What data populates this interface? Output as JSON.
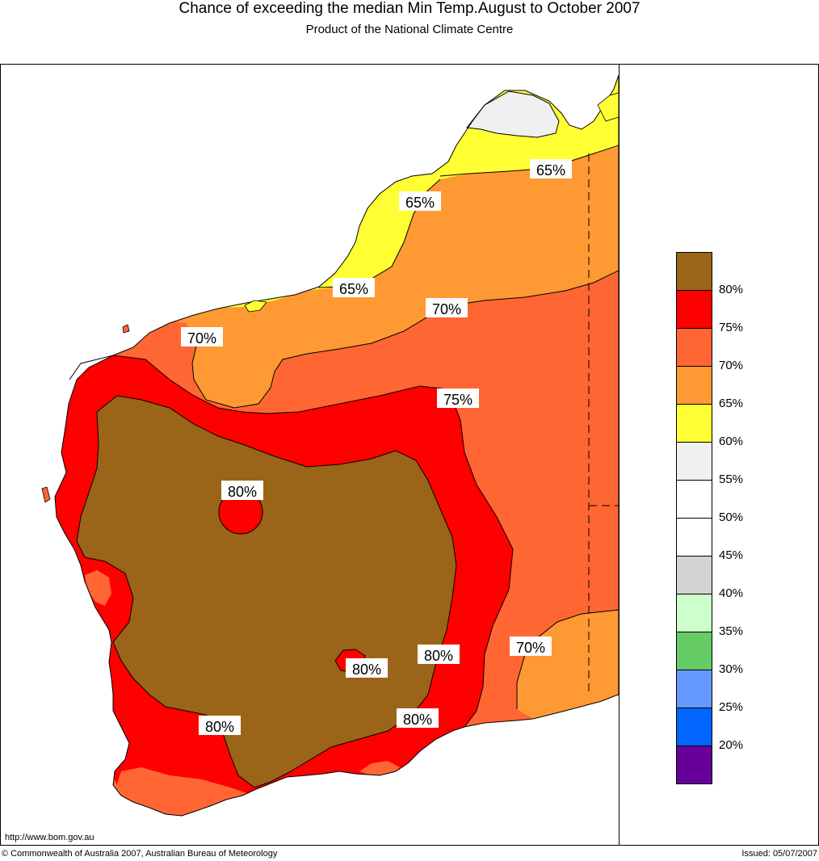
{
  "header": {
    "title": "Chance of exceeding the median Min Temp.August to October 2007",
    "subtitle": "Product of the National Climate Centre"
  },
  "map": {
    "region": "Western Australia",
    "contour_labels": [
      "65%",
      "65%",
      "65%",
      "70%",
      "70%",
      "75%",
      "80%",
      "80%",
      "80%",
      "80%",
      "80%",
      "70%"
    ]
  },
  "legend": {
    "classes": [
      {
        "label": "80%",
        "color": "#9a6519"
      },
      {
        "label": "75%",
        "color": "#ff0000"
      },
      {
        "label": "70%",
        "color": "#ff6633"
      },
      {
        "label": "65%",
        "color": "#ff9933"
      },
      {
        "label": "60%",
        "color": "#ffff33"
      },
      {
        "label": "55%",
        "color": "#f0f0f0"
      },
      {
        "label": "50%",
        "color": "#ffffff"
      },
      {
        "label": "45%",
        "color": "#ffffff"
      },
      {
        "label": "40%",
        "color": "#d3d3d3"
      },
      {
        "label": "35%",
        "color": "#ccffcc"
      },
      {
        "label": "30%",
        "color": "#66cc66"
      },
      {
        "label": "25%",
        "color": "#6699ff"
      },
      {
        "label": "20%",
        "color": "#0066ff"
      },
      {
        "label": "",
        "color": "#660099"
      }
    ]
  },
  "footer": {
    "url": "http://www.bom.gov.au",
    "copyright": "© Commonwealth of Australia 2007, Australian Bureau of Meteorology",
    "issued": "Issued: 05/07/2007"
  }
}
